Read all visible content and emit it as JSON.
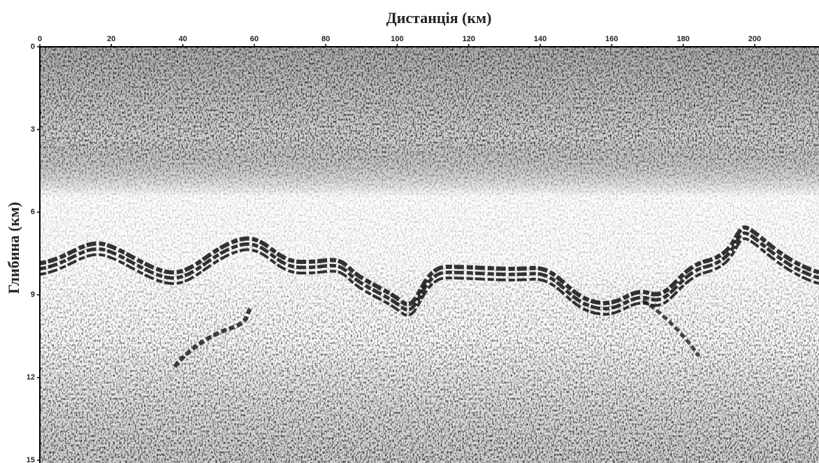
{
  "chart_data": {
    "type": "seismic",
    "title": "Дистанція (км)",
    "y_label": "Глибина (км)",
    "xlim": [
      0,
      218
    ],
    "xticks": [
      0,
      20,
      40,
      60,
      80,
      100,
      120,
      140,
      160,
      180,
      200
    ],
    "ylim": [
      0,
      15
    ],
    "yticks": [
      0,
      3,
      6,
      9,
      12,
      15
    ]
  }
}
